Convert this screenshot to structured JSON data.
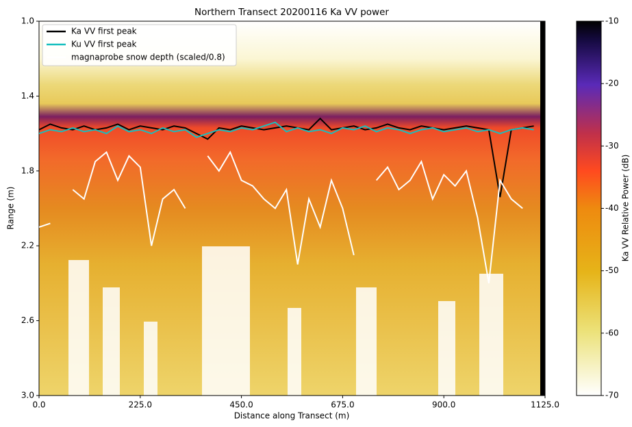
{
  "chart_data": {
    "type": "line",
    "title": "Northern Transect 20200116 Ka VV power",
    "x_label": "Distance along Transect (m)",
    "y_label": "Range (m)",
    "x": [
      0,
      25,
      50,
      75,
      100,
      125,
      150,
      175,
      200,
      225,
      250,
      275,
      300,
      325,
      350,
      375,
      400,
      425,
      450,
      475,
      500,
      525,
      550,
      575,
      600,
      625,
      650,
      675,
      700,
      725,
      750,
      775,
      800,
      825,
      850,
      875,
      900,
      925,
      950,
      975,
      1000,
      1025,
      1050,
      1075,
      1100
    ],
    "series": [
      {
        "name": "Ka VV first peak",
        "color": "#000000",
        "values": [
          1.58,
          1.55,
          1.57,
          1.58,
          1.56,
          1.58,
          1.57,
          1.55,
          1.58,
          1.56,
          1.57,
          1.58,
          1.56,
          1.57,
          1.6,
          1.63,
          1.57,
          1.58,
          1.56,
          1.57,
          1.58,
          1.57,
          1.56,
          1.57,
          1.58,
          1.52,
          1.58,
          1.57,
          1.56,
          1.58,
          1.57,
          1.55,
          1.57,
          1.58,
          1.56,
          1.57,
          1.58,
          1.57,
          1.56,
          1.57,
          1.58,
          1.94,
          1.58,
          1.57,
          1.56
        ]
      },
      {
        "name": "Ku VV first peak",
        "color": "#17bfbf",
        "values": [
          1.6,
          1.58,
          1.59,
          1.57,
          1.59,
          1.58,
          1.6,
          1.56,
          1.59,
          1.58,
          1.6,
          1.57,
          1.59,
          1.58,
          1.62,
          1.6,
          1.58,
          1.59,
          1.57,
          1.58,
          1.56,
          1.54,
          1.59,
          1.57,
          1.59,
          1.58,
          1.6,
          1.57,
          1.58,
          1.56,
          1.59,
          1.57,
          1.58,
          1.6,
          1.58,
          1.57,
          1.59,
          1.58,
          1.57,
          1.59,
          1.58,
          1.6,
          1.58,
          1.57,
          1.58
        ]
      },
      {
        "name": "magnaprobe snow depth (scaled/0.8)",
        "color": "#ffffff",
        "values": [
          2.1,
          2.08,
          null,
          1.9,
          1.95,
          1.75,
          1.7,
          1.85,
          1.72,
          1.78,
          2.2,
          1.95,
          1.9,
          2.0,
          null,
          1.72,
          1.8,
          1.7,
          1.85,
          1.88,
          1.95,
          2.0,
          1.9,
          2.3,
          1.95,
          2.1,
          1.85,
          2.0,
          2.25,
          null,
          1.85,
          1.78,
          1.9,
          1.85,
          1.75,
          1.95,
          1.82,
          1.88,
          1.8,
          2.05,
          2.4,
          1.85,
          1.95,
          2.0,
          null
        ]
      }
    ],
    "xlim": [
      0,
      1125
    ],
    "xticks": [
      {
        "value": 0,
        "label": "0.0"
      },
      {
        "value": 225,
        "label": "225.0"
      },
      {
        "value": 450,
        "label": "450.0"
      },
      {
        "value": 675,
        "label": "675.0"
      },
      {
        "value": 900,
        "label": "900.0"
      },
      {
        "value": 1125,
        "label": "1125.0"
      }
    ],
    "ylim": [
      3.0,
      1.0
    ],
    "yticks": [
      {
        "value": 1.0,
        "label": "1.0"
      },
      1.4,
      1.8,
      2.2,
      2.6,
      {
        "value": 3.0,
        "label": "3.0"
      }
    ],
    "legend": "upper left",
    "colorbar": {
      "label": "Ka VV Relative Power (dB)",
      "lim": [
        -70,
        -10
      ],
      "ticks": [
        -70,
        -60,
        -50,
        -40,
        -30,
        -20,
        -10
      ]
    }
  }
}
